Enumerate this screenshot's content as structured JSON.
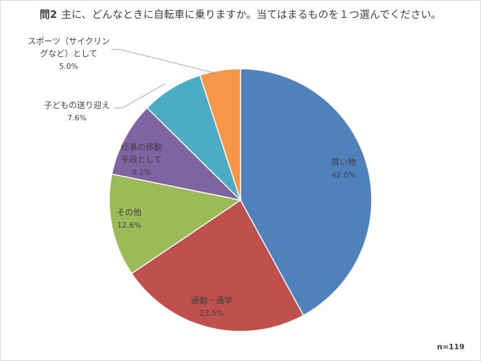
{
  "chart_data": {
    "type": "pie",
    "title_prefix": "問2",
    "title": "主に、どんなときに自転車に乗りますか。当てはまるものを１つ選んでください。",
    "note": "n=119",
    "slices": [
      {
        "label_lines": [
          "買い物"
        ],
        "value": 42.0,
        "value_text": "42.0%",
        "color": "#4F81BD"
      },
      {
        "label_lines": [
          "通勤・通学"
        ],
        "value": 23.5,
        "value_text": "23.5%",
        "color": "#C0504D"
      },
      {
        "label_lines": [
          "その他"
        ],
        "value": 12.6,
        "value_text": "12.6%",
        "color": "#9BBB59"
      },
      {
        "label_lines": [
          "仕事の移動",
          "手段として"
        ],
        "value": 9.2,
        "value_text": "9.2%",
        "color": "#8064A2"
      },
      {
        "label_lines": [
          "子どもの送り迎え"
        ],
        "value": 7.6,
        "value_text": "7.6%",
        "color": "#4BACC6"
      },
      {
        "label_lines": [
          "スポーツ（サイクリン",
          "グなど）として"
        ],
        "value": 5.0,
        "value_text": "5.0%",
        "color": "#F79646"
      }
    ]
  }
}
